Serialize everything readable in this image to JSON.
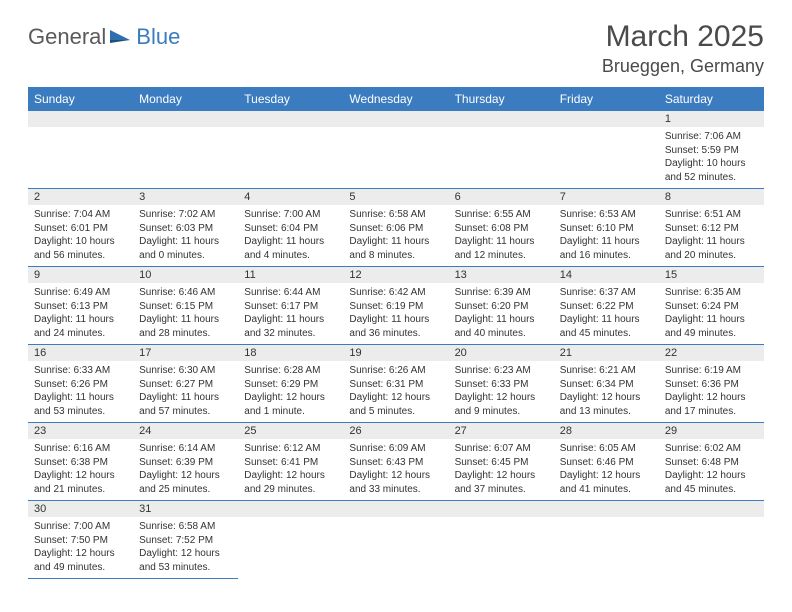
{
  "logo": {
    "part1": "General",
    "part2": "Blue"
  },
  "title": "March 2025",
  "location": "Brueggen, Germany",
  "colors": {
    "header_bg": "#3b7bbf",
    "header_text": "#ffffff",
    "daynum_bg": "#ececec",
    "border": "#3b7bbf",
    "text": "#333333",
    "logo_gray": "#5a5a5a",
    "logo_blue": "#3b7bbf"
  },
  "weekdays": [
    "Sunday",
    "Monday",
    "Tuesday",
    "Wednesday",
    "Thursday",
    "Friday",
    "Saturday"
  ],
  "weeks": [
    [
      null,
      null,
      null,
      null,
      null,
      null,
      {
        "n": "1",
        "sr": "7:06 AM",
        "ss": "5:59 PM",
        "dl": "10 hours and 52 minutes."
      }
    ],
    [
      {
        "n": "2",
        "sr": "7:04 AM",
        "ss": "6:01 PM",
        "dl": "10 hours and 56 minutes."
      },
      {
        "n": "3",
        "sr": "7:02 AM",
        "ss": "6:03 PM",
        "dl": "11 hours and 0 minutes."
      },
      {
        "n": "4",
        "sr": "7:00 AM",
        "ss": "6:04 PM",
        "dl": "11 hours and 4 minutes."
      },
      {
        "n": "5",
        "sr": "6:58 AM",
        "ss": "6:06 PM",
        "dl": "11 hours and 8 minutes."
      },
      {
        "n": "6",
        "sr": "6:55 AM",
        "ss": "6:08 PM",
        "dl": "11 hours and 12 minutes."
      },
      {
        "n": "7",
        "sr": "6:53 AM",
        "ss": "6:10 PM",
        "dl": "11 hours and 16 minutes."
      },
      {
        "n": "8",
        "sr": "6:51 AM",
        "ss": "6:12 PM",
        "dl": "11 hours and 20 minutes."
      }
    ],
    [
      {
        "n": "9",
        "sr": "6:49 AM",
        "ss": "6:13 PM",
        "dl": "11 hours and 24 minutes."
      },
      {
        "n": "10",
        "sr": "6:46 AM",
        "ss": "6:15 PM",
        "dl": "11 hours and 28 minutes."
      },
      {
        "n": "11",
        "sr": "6:44 AM",
        "ss": "6:17 PM",
        "dl": "11 hours and 32 minutes."
      },
      {
        "n": "12",
        "sr": "6:42 AM",
        "ss": "6:19 PM",
        "dl": "11 hours and 36 minutes."
      },
      {
        "n": "13",
        "sr": "6:39 AM",
        "ss": "6:20 PM",
        "dl": "11 hours and 40 minutes."
      },
      {
        "n": "14",
        "sr": "6:37 AM",
        "ss": "6:22 PM",
        "dl": "11 hours and 45 minutes."
      },
      {
        "n": "15",
        "sr": "6:35 AM",
        "ss": "6:24 PM",
        "dl": "11 hours and 49 minutes."
      }
    ],
    [
      {
        "n": "16",
        "sr": "6:33 AM",
        "ss": "6:26 PM",
        "dl": "11 hours and 53 minutes."
      },
      {
        "n": "17",
        "sr": "6:30 AM",
        "ss": "6:27 PM",
        "dl": "11 hours and 57 minutes."
      },
      {
        "n": "18",
        "sr": "6:28 AM",
        "ss": "6:29 PM",
        "dl": "12 hours and 1 minute."
      },
      {
        "n": "19",
        "sr": "6:26 AM",
        "ss": "6:31 PM",
        "dl": "12 hours and 5 minutes."
      },
      {
        "n": "20",
        "sr": "6:23 AM",
        "ss": "6:33 PM",
        "dl": "12 hours and 9 minutes."
      },
      {
        "n": "21",
        "sr": "6:21 AM",
        "ss": "6:34 PM",
        "dl": "12 hours and 13 minutes."
      },
      {
        "n": "22",
        "sr": "6:19 AM",
        "ss": "6:36 PM",
        "dl": "12 hours and 17 minutes."
      }
    ],
    [
      {
        "n": "23",
        "sr": "6:16 AM",
        "ss": "6:38 PM",
        "dl": "12 hours and 21 minutes."
      },
      {
        "n": "24",
        "sr": "6:14 AM",
        "ss": "6:39 PM",
        "dl": "12 hours and 25 minutes."
      },
      {
        "n": "25",
        "sr": "6:12 AM",
        "ss": "6:41 PM",
        "dl": "12 hours and 29 minutes."
      },
      {
        "n": "26",
        "sr": "6:09 AM",
        "ss": "6:43 PM",
        "dl": "12 hours and 33 minutes."
      },
      {
        "n": "27",
        "sr": "6:07 AM",
        "ss": "6:45 PM",
        "dl": "12 hours and 37 minutes."
      },
      {
        "n": "28",
        "sr": "6:05 AM",
        "ss": "6:46 PM",
        "dl": "12 hours and 41 minutes."
      },
      {
        "n": "29",
        "sr": "6:02 AM",
        "ss": "6:48 PM",
        "dl": "12 hours and 45 minutes."
      }
    ],
    [
      {
        "n": "30",
        "sr": "7:00 AM",
        "ss": "7:50 PM",
        "dl": "12 hours and 49 minutes."
      },
      {
        "n": "31",
        "sr": "6:58 AM",
        "ss": "7:52 PM",
        "dl": "12 hours and 53 minutes."
      },
      null,
      null,
      null,
      null,
      null
    ]
  ],
  "labels": {
    "sunrise": "Sunrise: ",
    "sunset": "Sunset: ",
    "daylight": "Daylight: "
  }
}
